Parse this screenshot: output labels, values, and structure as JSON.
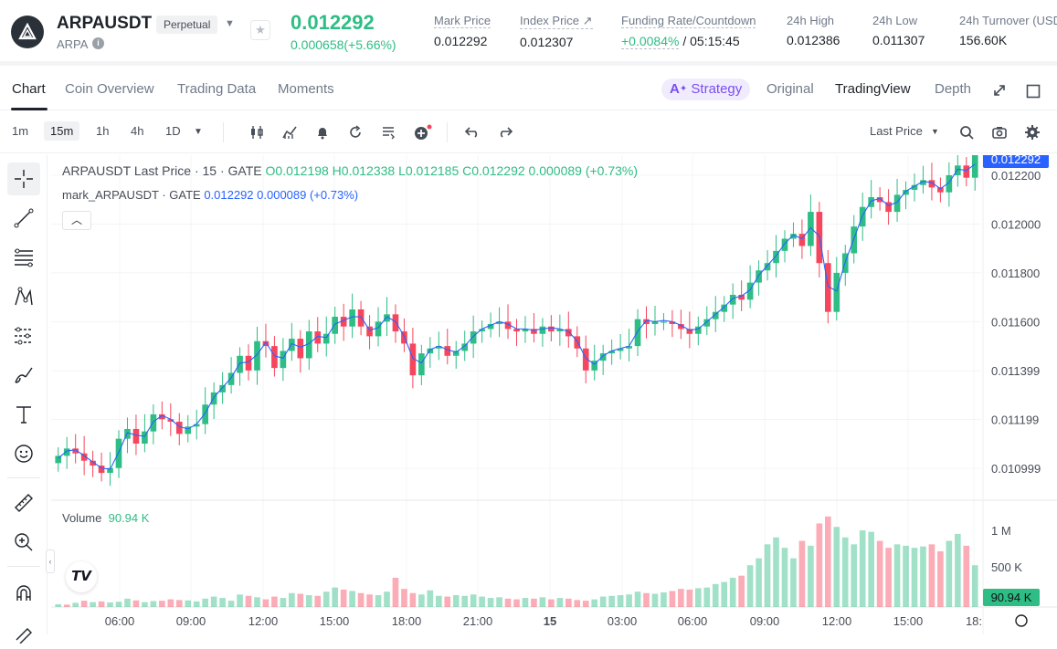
{
  "header": {
    "symbol": "ARPAUSDT",
    "badge": "Perpetual",
    "base": "ARPA",
    "last_price": "0.012292",
    "change": "0.000658(+5.66%)",
    "stats": [
      {
        "label": "Mark Price",
        "value": "0.012292"
      },
      {
        "label": "Index Price ↗",
        "value": "0.012307"
      },
      {
        "label": "Funding Rate/Countdown",
        "rate": "+0.0084%",
        "countdown": " / 05:15:45"
      },
      {
        "label": "24h High",
        "value": "0.012386"
      },
      {
        "label": "24h Low",
        "value": "0.011307"
      },
      {
        "label": "24h Turnover (USD",
        "value": "156.60K"
      }
    ]
  },
  "tabs": {
    "left": [
      "Chart",
      "Coin Overview",
      "Trading Data",
      "Moments"
    ],
    "strategy": "Strategy",
    "right": [
      "Original",
      "TradingView",
      "Depth"
    ],
    "active_left": "Chart",
    "active_right": "TradingView"
  },
  "toolbar": {
    "intervals": [
      "1m",
      "15m",
      "1h",
      "4h",
      "1D"
    ],
    "active_interval": "15m",
    "price_type": "Last Price"
  },
  "chart_legend": {
    "title": "ARPAUSDT Last Price · 15 · GATE",
    "ohlc": " O0.012198  H0.012338  L0.012185  C0.012292  0.000089 (+0.73%)",
    "mark_name": "mark_ARPAUSDT · GATE",
    "mark_values": " 0.012292  0.000089 (+0.73%)",
    "volume_label": "Volume",
    "volume_value": "90.94 K"
  },
  "colors": {
    "up": "#2ebd85",
    "down": "#f6465d",
    "mark_line": "#2962ff",
    "accent": "#7b4df2"
  },
  "chart_data": {
    "type": "candlestick",
    "price_axis": [
      "0.012200",
      "0.012000",
      "0.011800",
      "0.011600",
      "0.011399",
      "0.011199",
      "0.010999"
    ],
    "price_tick_values": [
      0.0122,
      0.012,
      0.0118,
      0.0116,
      0.011399,
      0.011199,
      0.010999
    ],
    "volume_axis": [
      "1 M",
      "500 K"
    ],
    "volume_tick_values": [
      1000000,
      500000
    ],
    "time_axis": [
      "06:00",
      "09:00",
      "12:00",
      "15:00",
      "18:00",
      "21:00",
      "15",
      "03:00",
      "06:00",
      "09:00",
      "12:00",
      "15:00",
      "18:"
    ],
    "last_price_tag": "0.012292",
    "mark_price_tag": "0.012292",
    "volume_tag": "90.94 K",
    "closes": [
      0.01105,
      0.01108,
      0.01106,
      0.01103,
      0.01101,
      0.01098,
      0.011,
      0.01112,
      0.01116,
      0.0111,
      0.01115,
      0.01122,
      0.0112,
      0.01119,
      0.01114,
      0.01117,
      0.01118,
      0.01126,
      0.01131,
      0.01134,
      0.01139,
      0.01146,
      0.0114,
      0.01152,
      0.0115,
      0.01141,
      0.01148,
      0.01153,
      0.01145,
      0.01156,
      0.01151,
      0.01155,
      0.01162,
      0.01158,
      0.01165,
      0.01158,
      0.01154,
      0.0116,
      0.01163,
      0.01156,
      0.01151,
      0.01138,
      0.01147,
      0.01149,
      0.0115,
      0.01146,
      0.01148,
      0.01151,
      0.01156,
      0.01157,
      0.01159,
      0.0116,
      0.01157,
      0.01156,
      0.01157,
      0.01155,
      0.01158,
      0.01156,
      0.01157,
      0.01154,
      0.01149,
      0.0114,
      0.01144,
      0.01147,
      0.01148,
      0.01149,
      0.0115,
      0.01161,
      0.01159,
      0.0116,
      0.0116,
      0.01159,
      0.01157,
      0.01155,
      0.01158,
      0.01161,
      0.01164,
      0.01167,
      0.01171,
      0.01169,
      0.01176,
      0.01181,
      0.01184,
      0.01189,
      0.01194,
      0.01196,
      0.01191,
      0.01205,
      0.01184,
      0.01164,
      0.0118,
      0.01188,
      0.01199,
      0.01207,
      0.01211,
      0.01209,
      0.01205,
      0.01212,
      0.01214,
      0.01216,
      0.01218,
      0.01215,
      0.01213,
      0.0122,
      0.01224,
      0.01219,
      0.01229
    ],
    "volumes": [
      40,
      35,
      60,
      90,
      70,
      80,
      65,
      75,
      120,
      95,
      70,
      85,
      90,
      110,
      100,
      95,
      80,
      120,
      150,
      130,
      90,
      180,
      160,
      140,
      110,
      150,
      130,
      200,
      190,
      170,
      160,
      220,
      280,
      250,
      230,
      200,
      180,
      170,
      220,
      420,
      260,
      200,
      180,
      240,
      160,
      150,
      170,
      160,
      180,
      150,
      130,
      140,
      120,
      110,
      130,
      120,
      140,
      110,
      130,
      120,
      100,
      90,
      110,
      150,
      160,
      170,
      180,
      220,
      200,
      190,
      210,
      230,
      260,
      250,
      270,
      280,
      330,
      360,
      420,
      450,
      600,
      700,
      900,
      1000,
      850,
      700,
      950,
      880,
      1200,
      1300,
      1150,
      1000,
      900,
      1100,
      1080,
      950,
      850,
      900,
      880,
      850,
      870,
      900,
      800,
      950,
      1050,
      880,
      600
    ],
    "volume_directions": [
      1,
      0,
      1,
      0,
      1,
      0,
      1,
      1,
      1,
      0,
      1,
      1,
      0,
      0,
      0,
      1,
      1,
      1,
      1,
      1,
      1,
      1,
      0,
      1,
      0,
      0,
      1,
      1,
      0,
      1,
      0,
      1,
      1,
      0,
      1,
      0,
      0,
      1,
      1,
      0,
      0,
      0,
      1,
      1,
      1,
      0,
      1,
      1,
      1,
      1,
      1,
      1,
      0,
      0,
      1,
      0,
      1,
      0,
      1,
      0,
      0,
      0,
      1,
      1,
      1,
      1,
      1,
      1,
      0,
      1,
      1,
      0,
      0,
      0,
      1,
      1,
      1,
      1,
      1,
      0,
      1,
      1,
      1,
      1,
      1,
      1,
      0,
      1,
      0,
      0,
      1,
      1,
      1,
      1,
      1,
      0,
      0,
      1,
      1,
      1,
      1,
      0,
      0,
      1,
      1,
      0,
      1
    ]
  }
}
